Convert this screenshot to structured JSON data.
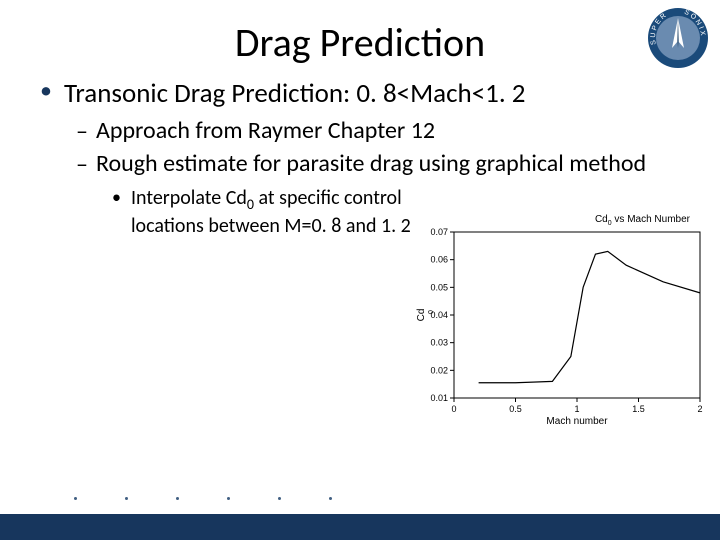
{
  "title": "Drag Prediction",
  "bullets": {
    "l1": "Transonic Drag Prediction: 0. 8<Mach<1. 2",
    "l2a": "Approach from Raymer Chapter 12",
    "l2b": "Rough estimate for parasite drag using graphical method",
    "l3": "Interpolate Cd₀ at specific control locations between M=0. 8 and 1. 2"
  },
  "chart": {
    "title": "Cd₀ vs Mach Number",
    "xlabel": "Mach number",
    "ylabel": "Cd₀",
    "xlim": [
      0,
      2
    ],
    "ylim": [
      0.01,
      0.07
    ],
    "xticks": [
      0,
      0.5,
      1,
      1.5,
      2
    ],
    "yticks": [
      0.01,
      0.02,
      0.03,
      0.04,
      0.05,
      0.06,
      0.07
    ],
    "line_color": "#000000",
    "axis_color": "#000000",
    "background_color": "#ffffff",
    "tick_fontsize": 9,
    "label_fontsize": 10,
    "curve_points": [
      {
        "x": 0.2,
        "y": 0.0155
      },
      {
        "x": 0.5,
        "y": 0.0155
      },
      {
        "x": 0.8,
        "y": 0.016
      },
      {
        "x": 0.95,
        "y": 0.025
      },
      {
        "x": 1.05,
        "y": 0.05
      },
      {
        "x": 1.15,
        "y": 0.062
      },
      {
        "x": 1.25,
        "y": 0.063
      },
      {
        "x": 1.4,
        "y": 0.058
      },
      {
        "x": 1.7,
        "y": 0.052
      },
      {
        "x": 2.0,
        "y": 0.048
      }
    ]
  },
  "logo": {
    "outer_text_top": "SUPER",
    "outer_text_right": "SONIX",
    "ring_color": "#1a4a7a",
    "center_bg": "#6a8bb0",
    "rocket_color": "#ffffff"
  },
  "footer": {
    "bar_color": "#17365d",
    "dot_color": "#415f82",
    "dot_count": 6
  }
}
